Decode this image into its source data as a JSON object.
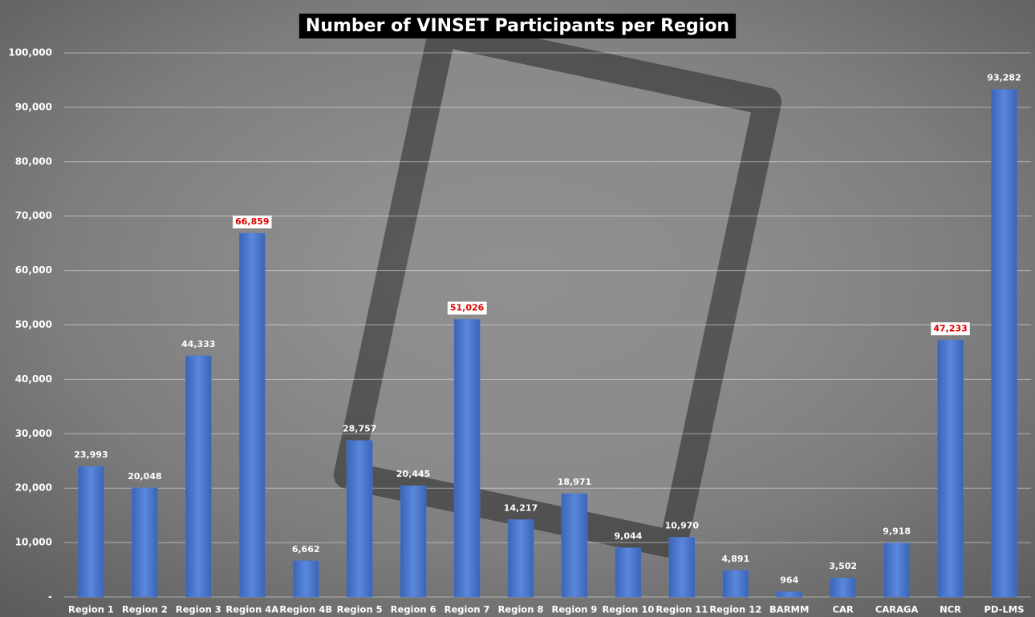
{
  "chart_data": {
    "type": "bar",
    "title": "Number of VINSET Participants per Region",
    "categories": [
      "Region 1",
      "Region 2",
      "Region 3",
      "Region 4A",
      "Region 4B",
      "Region 5",
      "Region 6",
      "Region 7",
      "Region 8",
      "Region 9",
      "Region 10",
      "Region 11",
      "Region 12",
      "BARMM",
      "CAR",
      "CARAGA",
      "NCR",
      "PD-LMS"
    ],
    "values": [
      23993,
      20048,
      44333,
      66859,
      6662,
      28757,
      20445,
      51026,
      14217,
      18971,
      9044,
      10970,
      4891,
      964,
      3502,
      9918,
      47233,
      93282
    ],
    "value_labels": [
      "23,993",
      "20,048",
      "44,333",
      "66,859",
      "6,662",
      "28,757",
      "20,445",
      "51,026",
      "14,217",
      "18,971",
      "9,044",
      "10,970",
      "4,891",
      "964",
      "3,502",
      "9,918",
      "47,233",
      "93,282"
    ],
    "highlighted": [
      3,
      7,
      16
    ],
    "highlight_color": "#e00000",
    "color": "#4a78d0",
    "ylim": [
      0,
      105000
    ],
    "yticks": [
      {
        "value": 0,
        "label": "-"
      },
      {
        "value": 10000,
        "label": "10,000"
      },
      {
        "value": 20000,
        "label": "20,000"
      },
      {
        "value": 30000,
        "label": "30,000"
      },
      {
        "value": 40000,
        "label": "40,000"
      },
      {
        "value": 50000,
        "label": "50,000"
      },
      {
        "value": 60000,
        "label": "60,000"
      },
      {
        "value": 70000,
        "label": "70,000"
      },
      {
        "value": 80000,
        "label": "80,000"
      },
      {
        "value": 90000,
        "label": "90,000"
      },
      {
        "value": 100000,
        "label": "100,000"
      }
    ],
    "grid": true
  }
}
